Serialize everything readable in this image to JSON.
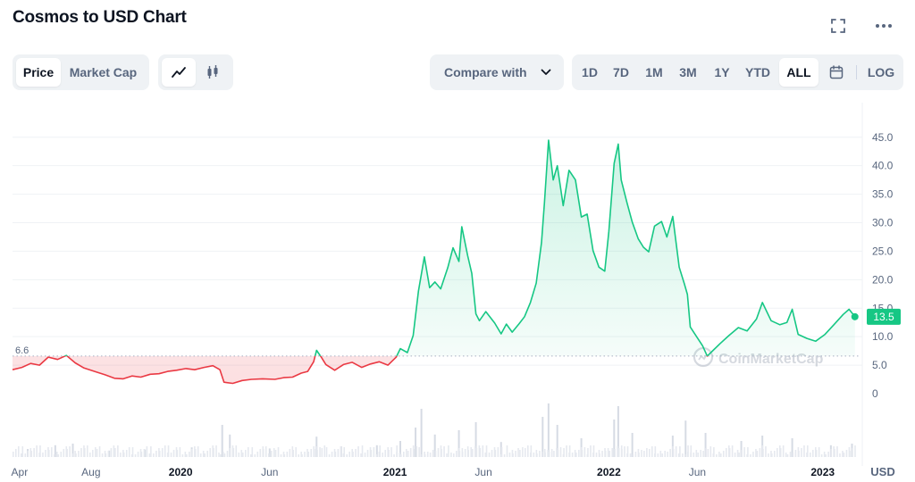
{
  "header": {
    "title": "Cosmos to USD Chart",
    "fullscreen_icon": "fullscreen-icon",
    "more_icon": "more-horizontal-icon"
  },
  "toolbar": {
    "view_tabs": [
      {
        "label": "Price",
        "active": true
      },
      {
        "label": "Market Cap",
        "active": false
      }
    ],
    "chart_style": [
      {
        "icon": "line-chart-icon",
        "active": true
      },
      {
        "icon": "candlestick-icon",
        "active": false
      }
    ],
    "compare": {
      "label": "Compare with",
      "icon": "chevron-down-icon"
    },
    "ranges": [
      "1D",
      "7D",
      "1M",
      "3M",
      "1Y",
      "YTD",
      "ALL"
    ],
    "active_range": "ALL",
    "calendar_icon": "calendar-icon",
    "log_label": "LOG"
  },
  "colors": {
    "up": "#16c784",
    "down": "#ea3943",
    "grid": "#eff2f5",
    "text_muted": "#58667e",
    "accent_bg": "#eff2f5"
  },
  "chart_data": {
    "type": "area",
    "currency": "USD",
    "y_ticks": [
      0,
      5,
      10,
      15,
      20,
      25,
      30,
      35,
      40,
      45
    ],
    "y_tick_labels": [
      "0",
      "5.0",
      "10.0",
      "15.0",
      "20.0",
      "25.0",
      "30.0",
      "35.0",
      "40.0",
      "45.0"
    ],
    "ylim": [
      0,
      47
    ],
    "x_tick_labels": [
      {
        "label": "Apr",
        "date": "2019-04-01",
        "bold": false
      },
      {
        "label": "Aug",
        "date": "2019-08-01",
        "bold": false
      },
      {
        "label": "2020",
        "date": "2020-01-01",
        "bold": true
      },
      {
        "label": "Jun",
        "date": "2020-06-01",
        "bold": false
      },
      {
        "label": "2021",
        "date": "2021-01-01",
        "bold": true
      },
      {
        "label": "Jun",
        "date": "2021-06-01",
        "bold": false
      },
      {
        "label": "2022",
        "date": "2022-01-01",
        "bold": true
      },
      {
        "label": "Jun",
        "date": "2022-06-01",
        "bold": false
      },
      {
        "label": "2023",
        "date": "2023-01-01",
        "bold": true
      }
    ],
    "xlim": [
      "2019-03-20",
      "2023-03-05"
    ],
    "baseline": {
      "value": 6.6,
      "label": "6.6"
    },
    "current": {
      "value": 13.5,
      "label": "13.5"
    },
    "watermark": "CoinMarketCap",
    "series": [
      {
        "points": [
          [
            "2019-03-20",
            4.2
          ],
          [
            "2019-04-05",
            4.6
          ],
          [
            "2019-04-20",
            5.3
          ],
          [
            "2019-05-05",
            5.0
          ],
          [
            "2019-05-20",
            6.4
          ],
          [
            "2019-06-05",
            6.0
          ],
          [
            "2019-06-20",
            6.7
          ],
          [
            "2019-07-05",
            5.4
          ],
          [
            "2019-07-20",
            4.5
          ],
          [
            "2019-08-10",
            3.8
          ],
          [
            "2019-08-25",
            3.3
          ],
          [
            "2019-09-10",
            2.7
          ],
          [
            "2019-09-25",
            2.6
          ],
          [
            "2019-10-10",
            3.1
          ],
          [
            "2019-10-25",
            2.9
          ],
          [
            "2019-11-10",
            3.4
          ],
          [
            "2019-11-25",
            3.5
          ],
          [
            "2019-12-10",
            3.9
          ],
          [
            "2019-12-25",
            4.1
          ],
          [
            "2020-01-10",
            4.4
          ],
          [
            "2020-01-25",
            4.2
          ],
          [
            "2020-02-10",
            4.6
          ],
          [
            "2020-02-25",
            4.9
          ],
          [
            "2020-03-08",
            4.2
          ],
          [
            "2020-03-15",
            2.0
          ],
          [
            "2020-03-30",
            1.8
          ],
          [
            "2020-04-15",
            2.3
          ],
          [
            "2020-05-01",
            2.5
          ],
          [
            "2020-05-20",
            2.6
          ],
          [
            "2020-06-10",
            2.5
          ],
          [
            "2020-06-25",
            2.8
          ],
          [
            "2020-07-10",
            2.9
          ],
          [
            "2020-07-25",
            3.6
          ],
          [
            "2020-08-05",
            3.9
          ],
          [
            "2020-08-15",
            5.6
          ],
          [
            "2020-08-20",
            7.6
          ],
          [
            "2020-08-28",
            6.4
          ],
          [
            "2020-09-05",
            5.1
          ],
          [
            "2020-09-20",
            4.1
          ],
          [
            "2020-10-05",
            5.1
          ],
          [
            "2020-10-20",
            5.5
          ],
          [
            "2020-11-05",
            4.6
          ],
          [
            "2020-11-20",
            5.2
          ],
          [
            "2020-12-05",
            5.6
          ],
          [
            "2020-12-20",
            5.0
          ],
          [
            "2021-01-03",
            6.4
          ],
          [
            "2021-01-10",
            7.9
          ],
          [
            "2021-01-22",
            7.2
          ],
          [
            "2021-02-01",
            10.2
          ],
          [
            "2021-02-10",
            18.0
          ],
          [
            "2021-02-20",
            24.0
          ],
          [
            "2021-03-01",
            18.6
          ],
          [
            "2021-03-10",
            19.6
          ],
          [
            "2021-03-20",
            18.4
          ],
          [
            "2021-04-01",
            22.1
          ],
          [
            "2021-04-10",
            25.6
          ],
          [
            "2021-04-20",
            23.2
          ],
          [
            "2021-04-25",
            29.3
          ],
          [
            "2021-05-05",
            24.2
          ],
          [
            "2021-05-12",
            21.1
          ],
          [
            "2021-05-19",
            14.0
          ],
          [
            "2021-05-25",
            12.8
          ],
          [
            "2021-06-05",
            14.4
          ],
          [
            "2021-06-20",
            12.4
          ],
          [
            "2021-07-01",
            10.5
          ],
          [
            "2021-07-10",
            12.2
          ],
          [
            "2021-07-20",
            10.8
          ],
          [
            "2021-08-01",
            12.3
          ],
          [
            "2021-08-10",
            13.5
          ],
          [
            "2021-08-20",
            16.0
          ],
          [
            "2021-08-30",
            19.4
          ],
          [
            "2021-09-08",
            26.5
          ],
          [
            "2021-09-13",
            33.5
          ],
          [
            "2021-09-20",
            44.5
          ],
          [
            "2021-09-28",
            37.5
          ],
          [
            "2021-10-05",
            40.0
          ],
          [
            "2021-10-15",
            33.0
          ],
          [
            "2021-10-25",
            39.2
          ],
          [
            "2021-11-05",
            37.5
          ],
          [
            "2021-11-15",
            31.0
          ],
          [
            "2021-11-25",
            31.5
          ],
          [
            "2021-12-05",
            25.1
          ],
          [
            "2021-12-15",
            22.2
          ],
          [
            "2021-12-25",
            21.5
          ],
          [
            "2022-01-01",
            28.5
          ],
          [
            "2022-01-10",
            40.4
          ],
          [
            "2022-01-17",
            43.8
          ],
          [
            "2022-01-22",
            37.5
          ],
          [
            "2022-02-01",
            33.5
          ],
          [
            "2022-02-10",
            30.1
          ],
          [
            "2022-02-20",
            27.2
          ],
          [
            "2022-03-01",
            25.7
          ],
          [
            "2022-03-10",
            24.9
          ],
          [
            "2022-03-20",
            29.4
          ],
          [
            "2022-04-01",
            30.2
          ],
          [
            "2022-04-10",
            27.5
          ],
          [
            "2022-04-20",
            31.1
          ],
          [
            "2022-05-01",
            22.2
          ],
          [
            "2022-05-10",
            19.2
          ],
          [
            "2022-05-15",
            17.4
          ],
          [
            "2022-05-20",
            11.7
          ],
          [
            "2022-06-01",
            9.8
          ],
          [
            "2022-06-10",
            8.4
          ],
          [
            "2022-06-18",
            6.6
          ],
          [
            "2022-06-28",
            7.6
          ],
          [
            "2022-07-10",
            8.8
          ],
          [
            "2022-07-25",
            10.2
          ],
          [
            "2022-08-10",
            11.6
          ],
          [
            "2022-08-25",
            11.0
          ],
          [
            "2022-09-10",
            13.1
          ],
          [
            "2022-09-20",
            16.0
          ],
          [
            "2022-10-05",
            12.8
          ],
          [
            "2022-10-20",
            12.1
          ],
          [
            "2022-11-01",
            12.5
          ],
          [
            "2022-11-10",
            14.8
          ],
          [
            "2022-11-20",
            10.4
          ],
          [
            "2022-12-05",
            9.7
          ],
          [
            "2022-12-20",
            9.2
          ],
          [
            "2023-01-05",
            10.4
          ],
          [
            "2023-01-20",
            12.1
          ],
          [
            "2023-02-05",
            13.9
          ],
          [
            "2023-02-15",
            14.8
          ],
          [
            "2023-02-25",
            13.5
          ]
        ]
      }
    ],
    "volume": [
      [
        "2019-04-15",
        0.15
      ],
      [
        "2019-06-01",
        0.22
      ],
      [
        "2019-07-01",
        0.25
      ],
      [
        "2019-09-01",
        0.12
      ],
      [
        "2019-11-01",
        0.14
      ],
      [
        "2020-01-20",
        0.18
      ],
      [
        "2020-03-12",
        0.6
      ],
      [
        "2020-03-25",
        0.42
      ],
      [
        "2020-06-01",
        0.16
      ],
      [
        "2020-08-20",
        0.38
      ],
      [
        "2020-10-01",
        0.2
      ],
      [
        "2020-12-01",
        0.22
      ],
      [
        "2021-01-10",
        0.3
      ],
      [
        "2021-02-05",
        0.55
      ],
      [
        "2021-02-15",
        0.9
      ],
      [
        "2021-03-10",
        0.42
      ],
      [
        "2021-04-20",
        0.5
      ],
      [
        "2021-05-19",
        0.65
      ],
      [
        "2021-07-01",
        0.28
      ],
      [
        "2021-09-10",
        0.75
      ],
      [
        "2021-09-20",
        1.0
      ],
      [
        "2021-10-05",
        0.6
      ],
      [
        "2021-11-15",
        0.35
      ],
      [
        "2022-01-10",
        0.7
      ],
      [
        "2022-01-17",
        0.95
      ],
      [
        "2022-02-10",
        0.45
      ],
      [
        "2022-04-20",
        0.4
      ],
      [
        "2022-05-12",
        0.68
      ],
      [
        "2022-06-15",
        0.45
      ],
      [
        "2022-08-15",
        0.3
      ],
      [
        "2022-09-20",
        0.4
      ],
      [
        "2022-11-10",
        0.35
      ],
      [
        "2023-01-15",
        0.22
      ],
      [
        "2023-02-20",
        0.25
      ]
    ]
  }
}
